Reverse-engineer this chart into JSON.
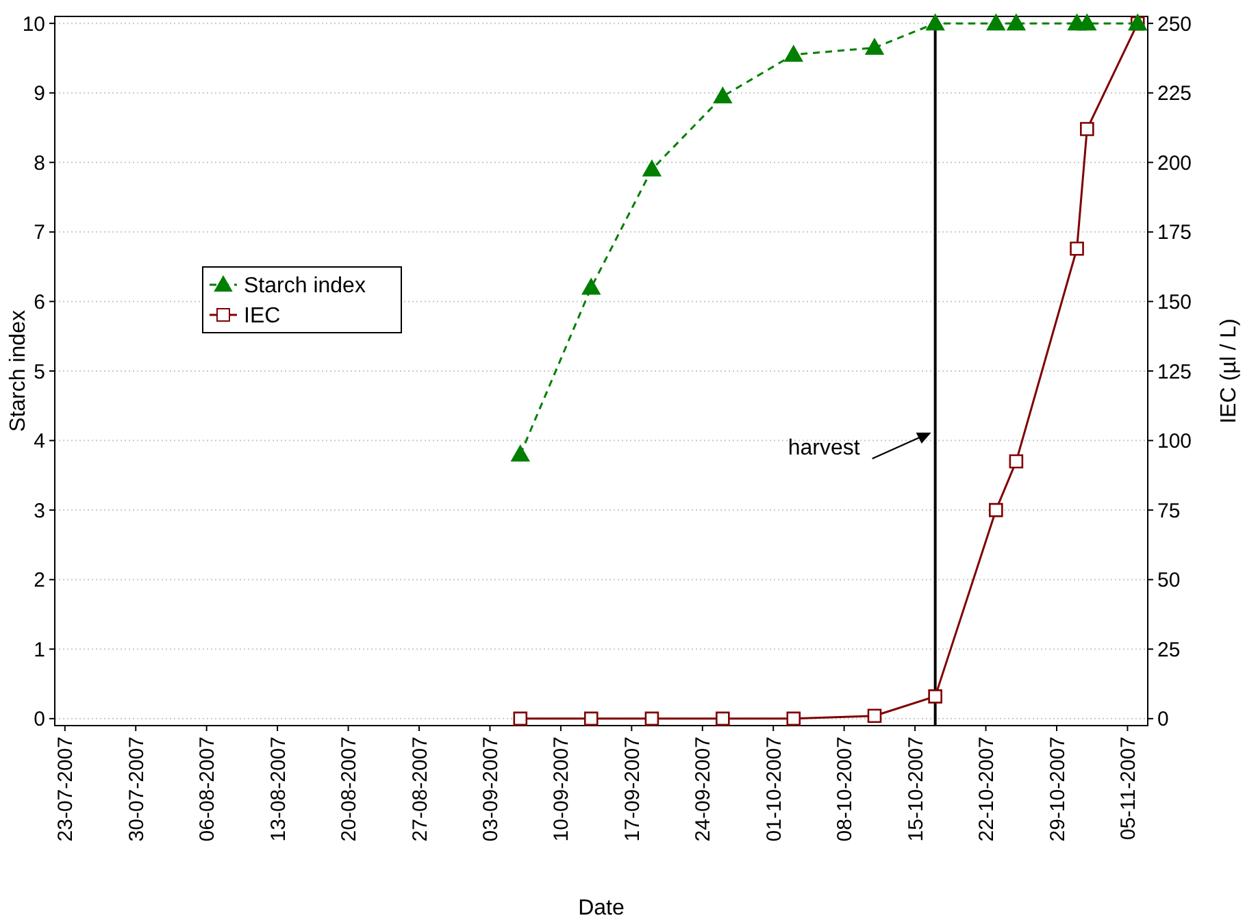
{
  "chart_data": {
    "type": "line",
    "xlabel": "Date",
    "ylabel": "Starch index",
    "y2label": "IEC (µl / L)",
    "x": [
      "2007-09-06",
      "2007-09-13",
      "2007-09-19",
      "2007-09-26",
      "2007-10-03",
      "2007-10-11",
      "2007-10-17",
      "2007-10-23",
      "2007-10-25",
      "2007-10-31",
      "2007-11-01",
      "2007-11-06"
    ],
    "series": [
      {
        "name": "Starch index",
        "color": "#007f00",
        "marker": "triangle",
        "line_style": "dashed",
        "values": [
          3.8,
          6.2,
          7.9,
          8.95,
          9.55,
          9.65,
          10,
          10,
          10,
          10,
          10,
          10
        ]
      },
      {
        "name": "IEC",
        "color": "#7f0000",
        "marker": "square",
        "line_style": "solid",
        "axis": "y2",
        "values": [
          0,
          0,
          0,
          0,
          0,
          1,
          8,
          75,
          92.5,
          169,
          212,
          250
        ]
      }
    ],
    "xlim": [
      "2007-07-22",
      "2007-11-07"
    ],
    "xticks": [
      {
        "value": "2007-07-23",
        "label": "23-07-2007"
      },
      {
        "value": "2007-07-30",
        "label": "30-07-2007"
      },
      {
        "value": "2007-08-06",
        "label": "06-08-2007"
      },
      {
        "value": "2007-08-13",
        "label": "13-08-2007"
      },
      {
        "value": "2007-08-20",
        "label": "20-08-2007"
      },
      {
        "value": "2007-08-27",
        "label": "27-08-2007"
      },
      {
        "value": "2007-09-03",
        "label": "03-09-2007"
      },
      {
        "value": "2007-09-10",
        "label": "10-09-2007"
      },
      {
        "value": "2007-09-17",
        "label": "17-09-2007"
      },
      {
        "value": "2007-09-24",
        "label": "24-09-2007"
      },
      {
        "value": "2007-10-01",
        "label": "01-10-2007"
      },
      {
        "value": "2007-10-08",
        "label": "08-10-2007"
      },
      {
        "value": "2007-10-15",
        "label": "15-10-2007"
      },
      {
        "value": "2007-10-22",
        "label": "22-10-2007"
      },
      {
        "value": "2007-10-29",
        "label": "29-10-2007"
      },
      {
        "value": "2007-11-05",
        "label": "05-11-2007"
      }
    ],
    "ylim": [
      -0.1,
      10.1
    ],
    "yticks": [
      0,
      1,
      2,
      3,
      4,
      5,
      6,
      7,
      8,
      9,
      10
    ],
    "y2lim": [
      -2.5,
      252.5
    ],
    "y2ticks": [
      0,
      25,
      50,
      75,
      100,
      125,
      150,
      175,
      200,
      225,
      250
    ],
    "ref_lines": [
      {
        "axis": "x",
        "value": "2007-10-17",
        "label": "harvest",
        "color": "#000000"
      }
    ],
    "grid": "y",
    "legend": "left"
  }
}
